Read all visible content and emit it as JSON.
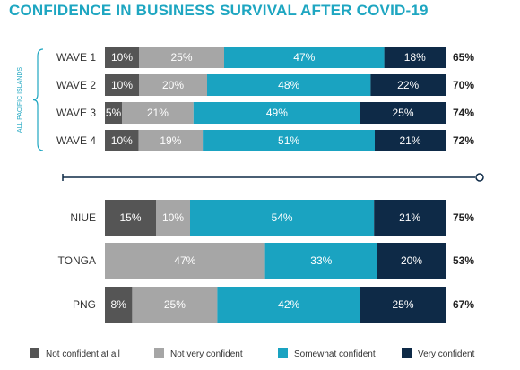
{
  "title": "CONFIDENCE IN BUSINESS SURVIVAL AFTER COVID-19",
  "bracket_label": "ALL PACIFIC ISLANDS",
  "colors": {
    "not_at_all": "#555555",
    "not_very": "#a6a6a6",
    "somewhat": "#1aa3c1",
    "very": "#0e2a47",
    "accent": "#1ea6c1",
    "divider": "#0e2a47"
  },
  "chart_data": {
    "type": "bar",
    "stacked": true,
    "orientation": "horizontal",
    "xlim": [
      0,
      100
    ],
    "legend_position": "bottom",
    "series": [
      {
        "name": "Not confident at all",
        "color": "#555555"
      },
      {
        "name": "Not very confident",
        "color": "#a6a6a6"
      },
      {
        "name": "Somewhat confident",
        "color": "#1aa3c1"
      },
      {
        "name": "Very confident",
        "color": "#0e2a47"
      }
    ],
    "groups": [
      {
        "rows": [
          {
            "label": "WAVE 1",
            "values": [
              10,
              25,
              47,
              18
            ],
            "labels": [
              "10%",
              "25%",
              "47%",
              "18%"
            ],
            "total": "65%"
          },
          {
            "label": "WAVE 2",
            "values": [
              10,
              20,
              48,
              22
            ],
            "labels": [
              "10%",
              "20%",
              "48%",
              "22%"
            ],
            "total": "70%"
          },
          {
            "label": "WAVE 3",
            "values": [
              5,
              21,
              49,
              25
            ],
            "labels": [
              "5%",
              "21%",
              "49%",
              "25%"
            ],
            "total": "74%"
          },
          {
            "label": "WAVE 4",
            "values": [
              10,
              19,
              51,
              21
            ],
            "labels": [
              "10%",
              "19%",
              "51%",
              "21%"
            ],
            "total": "72%"
          }
        ]
      },
      {
        "rows": [
          {
            "label": "NIUE",
            "values": [
              15,
              10,
              54,
              21
            ],
            "labels": [
              "15%",
              "10%",
              "54%",
              "21%"
            ],
            "total": "75%"
          },
          {
            "label": "TONGA",
            "values": [
              0,
              47,
              33,
              20
            ],
            "labels": [
              "0%",
              "47%",
              "33%",
              "20%"
            ],
            "total": "53%"
          },
          {
            "label": "PNG",
            "values": [
              8,
              25,
              42,
              25
            ],
            "labels": [
              "8%",
              "25%",
              "42%",
              "25%"
            ],
            "total": "67%"
          }
        ]
      }
    ]
  }
}
